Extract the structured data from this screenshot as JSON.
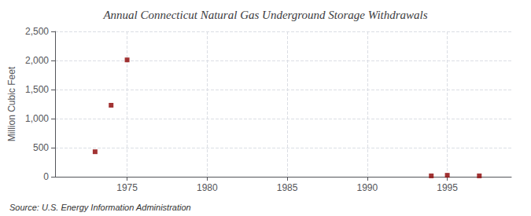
{
  "chart_data": {
    "type": "scatter",
    "title": "Annual Connecticut Natural Gas Underground Storage Withdrawals",
    "ylabel": "Million Cubic Feet",
    "source": "Source: U.S. Energy Information Administration",
    "x": [
      1973,
      1974,
      1975,
      1994,
      1995,
      1997
    ],
    "values": [
      430,
      1230,
      2010,
      15,
      25,
      15
    ],
    "color": "#8b0000",
    "marker": "square",
    "xlim": [
      1970.5,
      1999
    ],
    "xticks": [
      1975,
      1980,
      1985,
      1990,
      1995
    ],
    "ylim": [
      0,
      2500
    ],
    "yticks": [
      0,
      500,
      {
        "value": 1000,
        "label": "1,000"
      },
      {
        "value": 1500,
        "label": "1,500"
      },
      {
        "value": 2000,
        "label": "2,000"
      },
      {
        "value": 2500,
        "label": "2,500"
      }
    ],
    "grid": true
  }
}
